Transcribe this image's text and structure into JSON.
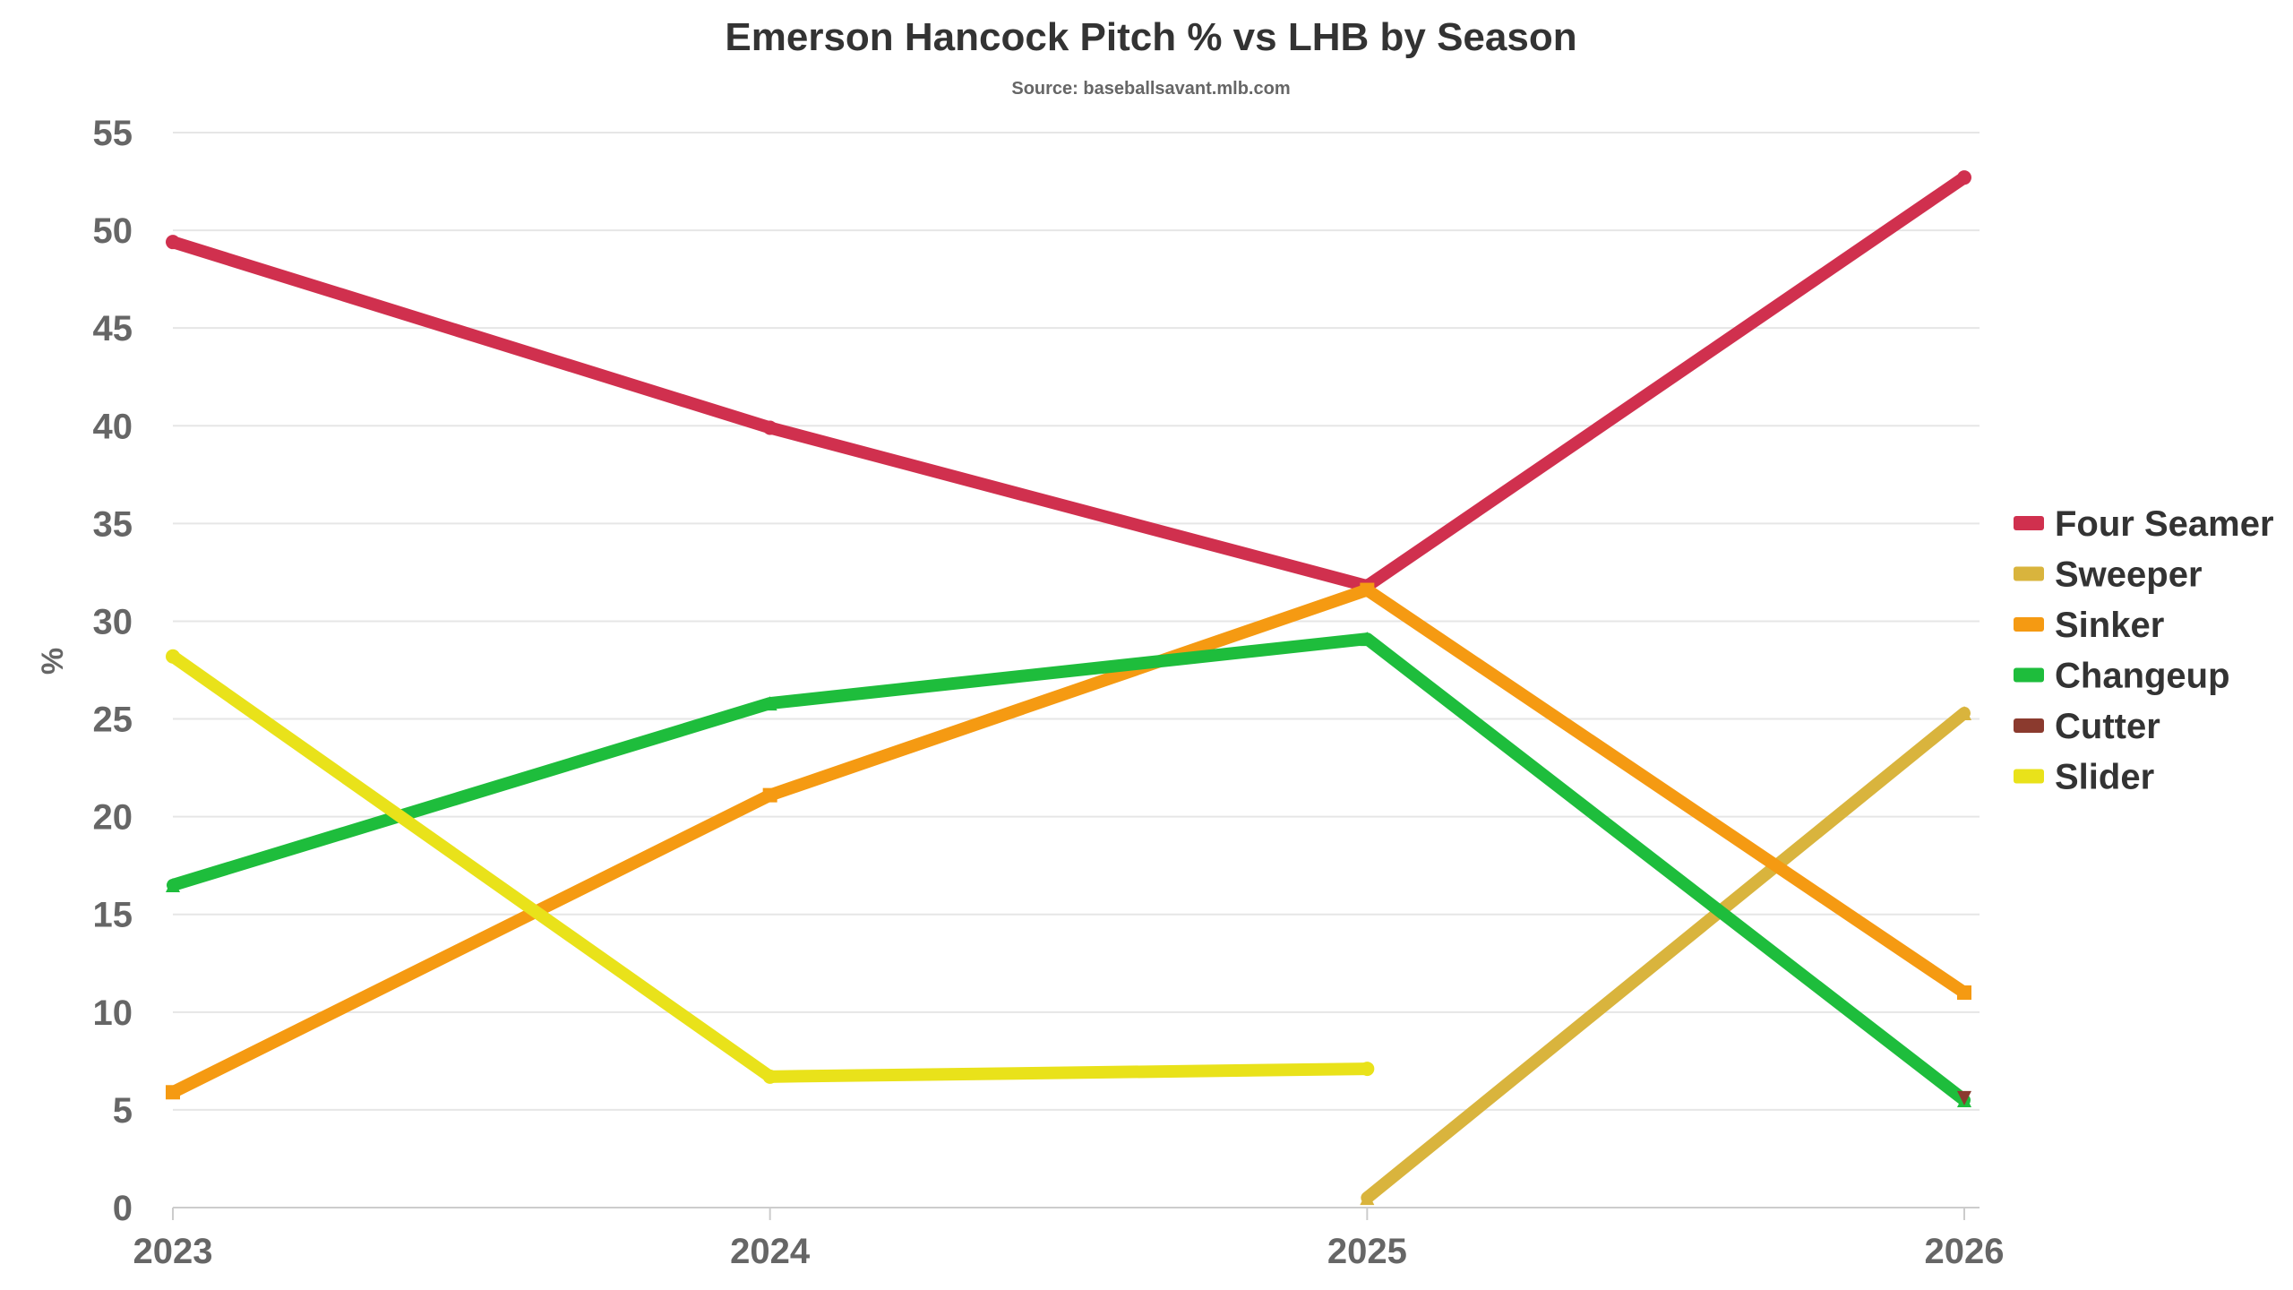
{
  "chart_data": {
    "type": "line",
    "title": "Emerson Hancock Pitch % vs LHB by Season",
    "subtitle": "Source: baseballsavant.mlb.com",
    "xlabel": "",
    "ylabel": "%",
    "x": [
      "2023",
      "2024",
      "2025",
      "2026"
    ],
    "ylim": [
      0,
      55
    ],
    "yticks": [
      0,
      5,
      10,
      15,
      20,
      25,
      30,
      35,
      40,
      45,
      50,
      55
    ],
    "grid": true,
    "legend_position": "right",
    "series": [
      {
        "name": "Four Seamer",
        "color": "#d0304e",
        "marker": "circle",
        "values": [
          49.4,
          39.9,
          31.8,
          52.7
        ]
      },
      {
        "name": "Sweeper",
        "color": "#d9b43d",
        "marker": "triangle",
        "values": [
          null,
          null,
          0.5,
          25.3
        ]
      },
      {
        "name": "Sinker",
        "color": "#f59a12",
        "marker": "square",
        "values": [
          5.9,
          21.1,
          31.6,
          11.0
        ]
      },
      {
        "name": "Changeup",
        "color": "#1ebd3c",
        "marker": "triangle",
        "values": [
          16.5,
          25.8,
          29.1,
          5.5
        ]
      },
      {
        "name": "Cutter",
        "color": "#8b3a2e",
        "marker": "triangle-down",
        "values": [
          null,
          null,
          null,
          5.6
        ]
      },
      {
        "name": "Slider",
        "color": "#e9e21a",
        "marker": "circle",
        "values": [
          28.2,
          6.7,
          7.1,
          null
        ]
      }
    ]
  }
}
